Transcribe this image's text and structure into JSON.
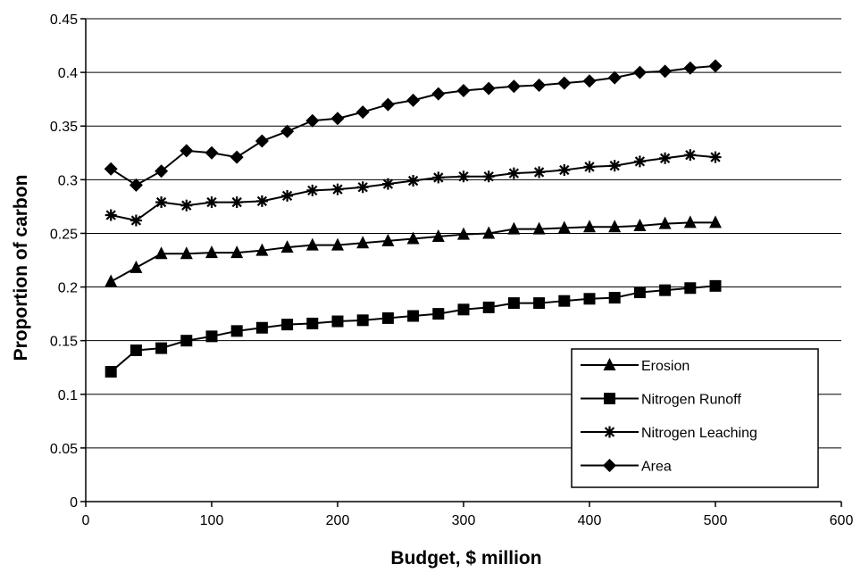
{
  "chart_data": {
    "type": "line",
    "title": "",
    "xlabel": "Budget, $ million",
    "ylabel": "Proportion of carbon",
    "xlim": [
      0,
      600
    ],
    "ylim": [
      0,
      0.45
    ],
    "x_ticks": [
      0,
      100,
      200,
      300,
      400,
      500,
      600
    ],
    "x_tick_labels": [
      "0",
      "100",
      "200",
      "300",
      "400",
      "500",
      "600"
    ],
    "y_ticks": [
      0,
      0.05,
      0.1,
      0.15,
      0.2,
      0.25,
      0.3,
      0.35,
      0.4,
      0.45
    ],
    "y_tick_labels": [
      "0",
      "0.05",
      "0.1",
      "0.15",
      "0.2",
      "0.25",
      "0.3",
      "0.35",
      "0.4",
      "0.45"
    ],
    "grid": "horizontal",
    "legend_position": "bottom-right",
    "x": [
      20,
      40,
      60,
      80,
      100,
      120,
      140,
      160,
      180,
      200,
      220,
      240,
      260,
      280,
      300,
      320,
      340,
      360,
      380,
      400,
      420,
      440,
      460,
      480,
      500
    ],
    "series": [
      {
        "name": "Erosion",
        "marker": "triangle",
        "values": [
          0.205,
          0.218,
          0.231,
          0.231,
          0.232,
          0.232,
          0.234,
          0.237,
          0.239,
          0.239,
          0.241,
          0.243,
          0.245,
          0.247,
          0.249,
          0.25,
          0.254,
          0.254,
          0.255,
          0.256,
          0.256,
          0.257,
          0.259,
          0.26,
          0.26
        ]
      },
      {
        "name": "Nitrogen Runoff",
        "marker": "square",
        "values": [
          0.121,
          0.141,
          0.143,
          0.15,
          0.154,
          0.159,
          0.162,
          0.165,
          0.166,
          0.168,
          0.169,
          0.171,
          0.173,
          0.175,
          0.179,
          0.181,
          0.185,
          0.185,
          0.187,
          0.189,
          0.19,
          0.195,
          0.197,
          0.199,
          0.201
        ]
      },
      {
        "name": "Nitrogen Leaching",
        "marker": "star",
        "values": [
          0.267,
          0.262,
          0.279,
          0.276,
          0.279,
          0.279,
          0.28,
          0.285,
          0.29,
          0.291,
          0.293,
          0.296,
          0.299,
          0.302,
          0.303,
          0.303,
          0.306,
          0.307,
          0.309,
          0.312,
          0.313,
          0.317,
          0.32,
          0.323,
          0.321
        ]
      },
      {
        "name": "Area",
        "marker": "diamond",
        "values": [
          0.31,
          0.295,
          0.308,
          0.327,
          0.325,
          0.321,
          0.336,
          0.345,
          0.355,
          0.357,
          0.363,
          0.37,
          0.374,
          0.38,
          0.383,
          0.385,
          0.387,
          0.388,
          0.39,
          0.392,
          0.395,
          0.4,
          0.401,
          0.404,
          0.406
        ]
      }
    ]
  },
  "colors": {
    "line": "#000000",
    "grid": "#000000",
    "background": "#ffffff"
  }
}
